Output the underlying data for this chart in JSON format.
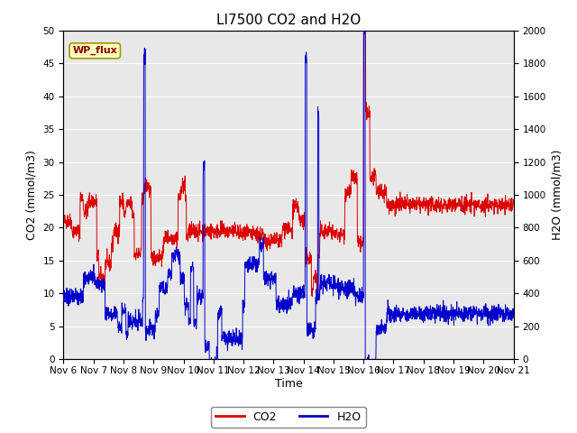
{
  "title": "LI7500 CO2 and H2O",
  "xlabel": "Time",
  "ylabel_left": "CO2 (mmol/m3)",
  "ylabel_right": "H2O (mmol/m3)",
  "co2_color": "#dd0000",
  "h2o_color": "#0000cc",
  "ylim_left": [
    0,
    50
  ],
  "ylim_right": [
    0,
    2000
  ],
  "yticks_left": [
    0,
    5,
    10,
    15,
    20,
    25,
    30,
    35,
    40,
    45,
    50
  ],
  "yticks_right": [
    0,
    200,
    400,
    600,
    800,
    1000,
    1200,
    1400,
    1600,
    1800,
    2000
  ],
  "xtick_labels": [
    "Nov 6",
    "Nov 7",
    "Nov 8",
    "Nov 9",
    "Nov 10",
    "Nov 11",
    "Nov 12",
    "Nov 13",
    "Nov 14",
    "Nov 15",
    "Nov 16",
    "Nov 17",
    "Nov 18",
    "Nov 19",
    "Nov 20",
    "Nov 21"
  ],
  "annotation_text": "WP_flux",
  "plot_bg_color": "#e8e8e8",
  "grid_color": "#ffffff",
  "legend_co2": "CO2",
  "legend_h2o": "H2O",
  "title_fontsize": 11,
  "axis_fontsize": 9,
  "tick_fontsize": 7.5
}
